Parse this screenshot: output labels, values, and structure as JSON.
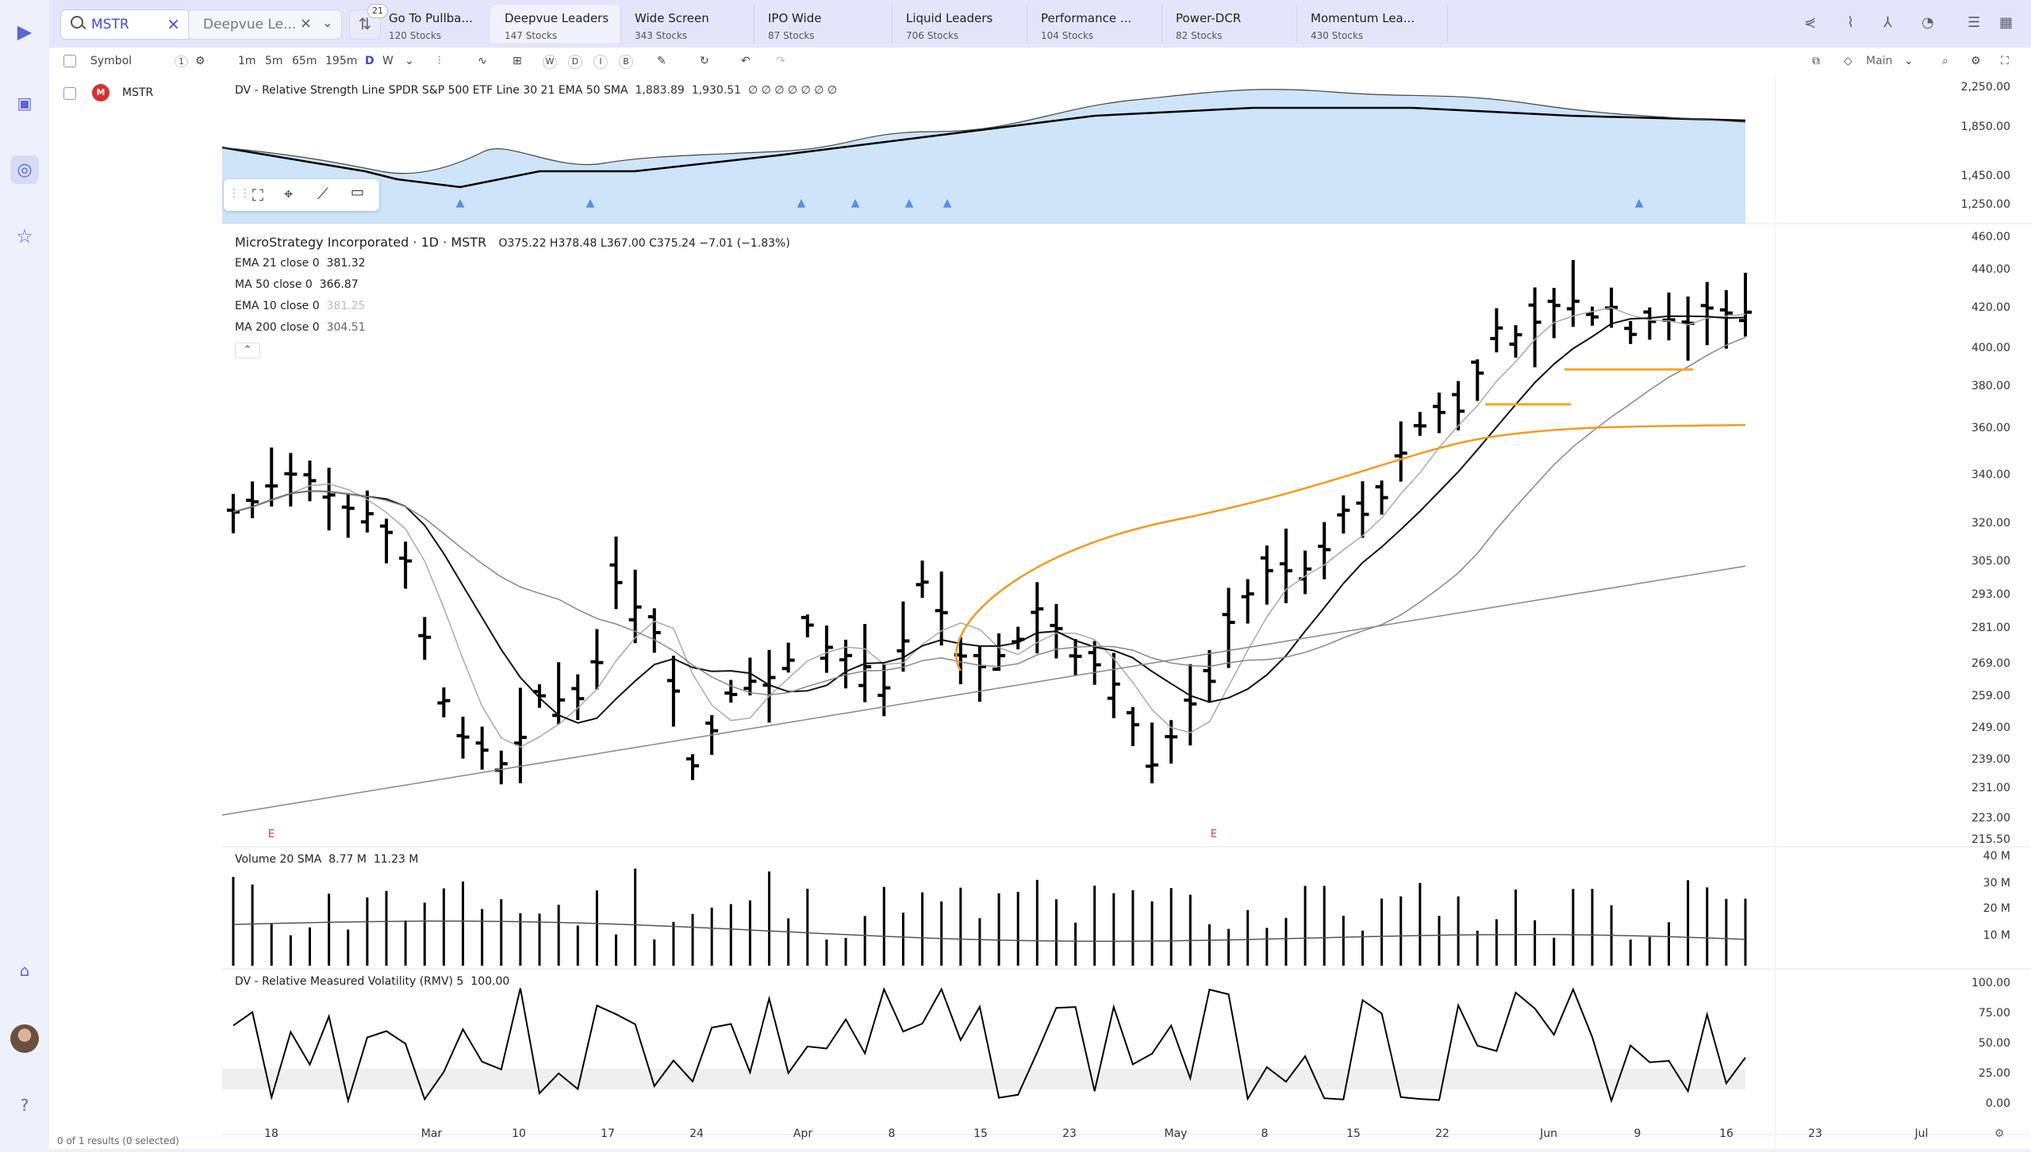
{
  "app": {
    "search_value": "MSTR",
    "watchlist_value": "Deepvue Le...",
    "filter_badge": "21",
    "tabs": [
      {
        "label": "Go To Pullba...",
        "count": "120 Stocks"
      },
      {
        "label": "Deepvue Leaders",
        "count": "147 Stocks"
      },
      {
        "label": "Wide Screen",
        "count": "343 Stocks"
      },
      {
        "label": "IPO Wide",
        "count": "87 Stocks"
      },
      {
        "label": "Liquid Leaders",
        "count": "706 Stocks"
      },
      {
        "label": "Performance ...",
        "count": "104 Stocks"
      },
      {
        "label": "Power-DCR",
        "count": "82 Stocks"
      },
      {
        "label": "Momentum Lea...",
        "count": "430 Stocks"
      }
    ],
    "active_tab": 1
  },
  "toolbar": {
    "symbol_label": "Symbol",
    "symbol_count": "1",
    "timeframes": [
      "1m",
      "5m",
      "65m",
      "195m",
      "D",
      "W"
    ],
    "selected_timeframe": "D",
    "chart_types": [
      "W",
      "D",
      "I",
      "B"
    ],
    "layout_label": "Main"
  },
  "symbols": [
    {
      "ticker": "MSTR",
      "selected": false
    }
  ],
  "footer": {
    "results": "0 of 1 results (0 selected)"
  },
  "chart": {
    "rs_legend": "DV - Relative Strength Line SPDR S&P 500 ETF Line 30 21 EMA 50 SMA",
    "rs_v1": "1,883.89",
    "rs_v2": "1,930.51",
    "rs_dots": "∅ ∅ ∅ ∅ ∅ ∅ ∅",
    "title": "MicroStrategy Incorporated · 1D · MSTR",
    "ohlc": "O375.22  H378.48  L367.00  C375.24  −7.01 (−1.83%)",
    "indicators": [
      {
        "label": "EMA 21 close 0",
        "value": "381.32",
        "color": "#111111"
      },
      {
        "label": "MA 50 close 0",
        "value": "366.87",
        "color": "#f29a1e"
      },
      {
        "label": "EMA 10 close 0",
        "value": "381.25",
        "color": "#bbbbbb"
      },
      {
        "label": "MA 200 close 0",
        "value": "304.51",
        "color": "#777777"
      }
    ],
    "volume_legend": "Volume 20 SMA",
    "volume_v1": "8.77 M",
    "volume_v2": "11.23 M",
    "rmv_legend": "DV - Relative Measured Volatility (RMV) 5",
    "rmv_value": "100.00",
    "rs_axis": [
      "2,250.00",
      "1,850.00",
      "1,450.00",
      "1,250.00"
    ],
    "price_axis": [
      "460.00",
      "440.00",
      "420.00",
      "400.00",
      "380.00",
      "360.00",
      "340.00",
      "320.00",
      "305.00",
      "293.00",
      "281.00",
      "269.00",
      "259.00",
      "249.00",
      "239.00",
      "231.00",
      "223.00",
      "215.50"
    ],
    "volume_axis": [
      "40 M",
      "30 M",
      "20 M",
      "10 M"
    ],
    "rmv_axis": [
      "100.00",
      "75.00",
      "50.00",
      "25.00",
      "0.00"
    ],
    "x_labels": [
      "18",
      "Mar",
      "10",
      "17",
      "24",
      "Apr",
      "8",
      "15",
      "23",
      "May",
      "8",
      "15",
      "22",
      "Jun",
      "9",
      "16",
      "23",
      "Jul"
    ],
    "earnings_marker": "E"
  }
}
